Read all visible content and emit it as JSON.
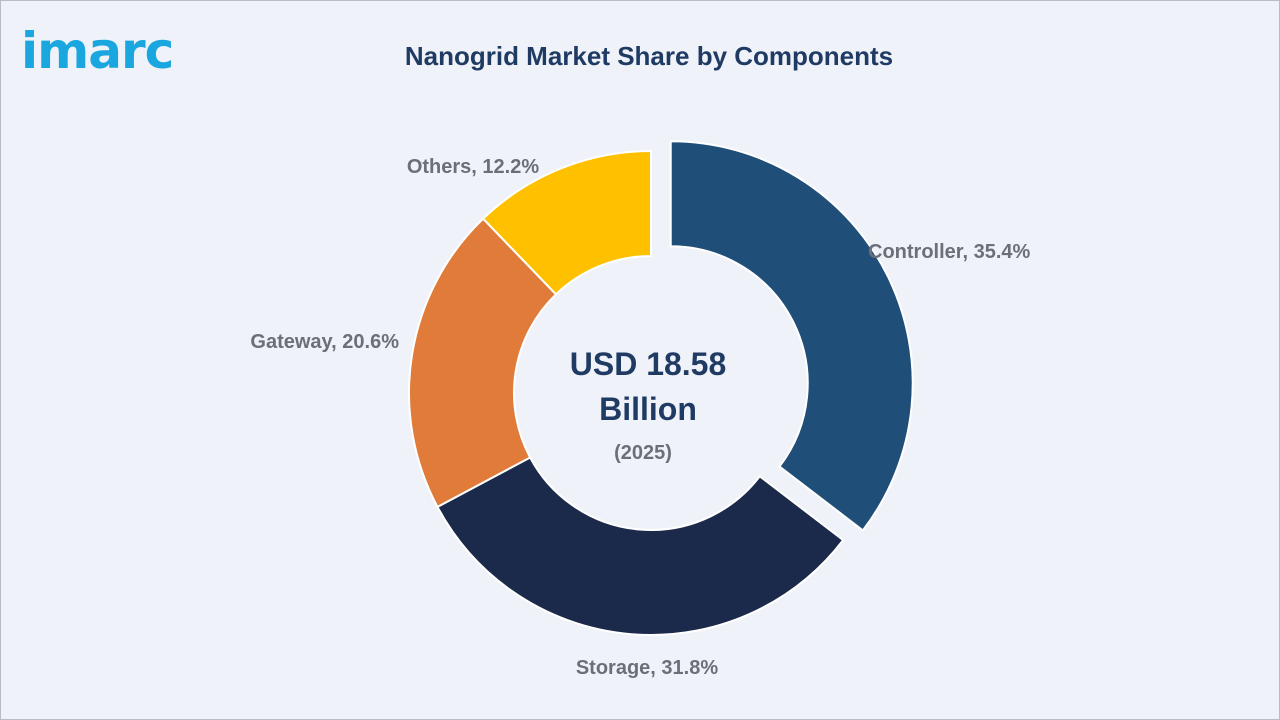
{
  "brand": {
    "logo_text": "imarc",
    "color": "#1aa6de"
  },
  "chart_data": {
    "type": "pie",
    "title": "Nanogrid Market Share by Components",
    "center_label": {
      "value_lines": [
        "USD 18.58",
        "Billion"
      ],
      "year": "(2025)"
    },
    "slices": [
      {
        "name": "Controller",
        "value": 35.4,
        "label": "Controller, 35.4%",
        "color": "#1f4e79",
        "exploded": true
      },
      {
        "name": "Storage",
        "value": 31.8,
        "label": "Storage, 31.8%",
        "color": "#1b2a4a",
        "exploded": false
      },
      {
        "name": "Gateway",
        "value": 20.6,
        "label": "Gateway, 20.6%",
        "color": "#e07b39",
        "exploded": false
      },
      {
        "name": "Others",
        "value": 12.2,
        "label": "Others, 12.2%",
        "color": "#ffc000",
        "exploded": false
      }
    ]
  }
}
